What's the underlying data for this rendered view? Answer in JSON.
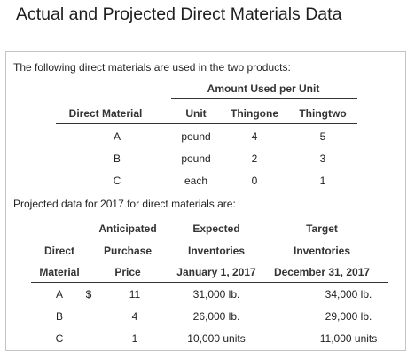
{
  "title": "Actual and Projected Direct Materials Data",
  "table1": {
    "intro": "The following direct materials are used in the two products:",
    "group_header": "Amount Used per Unit",
    "headers": {
      "material": "Direct Material",
      "unit": "Unit",
      "p1": "Thingone",
      "p2": "Thingtwo"
    },
    "rows": [
      {
        "material": "A",
        "unit": "pound",
        "p1": "4",
        "p2": "5"
      },
      {
        "material": "B",
        "unit": "pound",
        "p1": "2",
        "p2": "3"
      },
      {
        "material": "C",
        "unit": "each",
        "p1": "0",
        "p2": "1"
      }
    ]
  },
  "table2": {
    "intro": "Projected data for 2017 for direct materials are:",
    "headers": {
      "direct": "Direct",
      "material": "Material",
      "anticipated": "Anticipated",
      "purchase": "Purchase",
      "price": "Price",
      "expected": "Expected",
      "inventories_a": "Inventories",
      "jan": "January 1, 2017",
      "target": "Target",
      "inventories_b": "Inventories",
      "dec": "December 31, 2017"
    },
    "currency": "$",
    "rows": [
      {
        "material": "A",
        "price": "11",
        "jan": "31,000 lb.",
        "dec": "34,000 lb."
      },
      {
        "material": "B",
        "price": "4",
        "jan": "26,000 lb.",
        "dec": "29,000 lb."
      },
      {
        "material": "C",
        "price": "1",
        "jan": "10,000 units",
        "dec": "11,000 units"
      }
    ]
  }
}
